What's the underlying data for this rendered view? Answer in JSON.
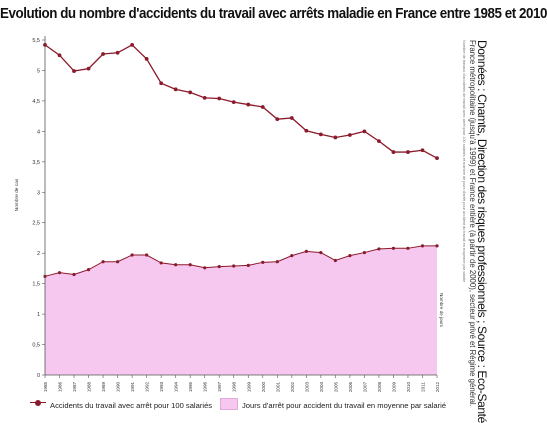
{
  "chart_data": {
    "type": "line",
    "title": "Evolution du nombre d'accidents du travail avec arrêts maladie en France entre 1985 et 2010",
    "source_text": "Données : Cnamts, Direction des risques professionnels ; Source : Eco-Santé",
    "note_text": "France métropolitaine (jusqu'à 1999) et France entière (à partir de 2000), secteur privé et Régime général.",
    "note_text_small": "Nombre de travaux d'accidents de travail avec arrêt pour 100 salariés et nombre de jours d'arrêt pour accident du travail en moyenne par salarié",
    "ylabel": "Nombre de cas",
    "y2label": "Nombre de jours",
    "ylim": [
      0,
      5.5
    ],
    "yticks": [
      "0",
      "0,5",
      "1",
      "1,5",
      "2",
      "2,5",
      "3",
      "3,5",
      "4",
      "4,5",
      "5",
      "5,5"
    ],
    "x": [
      "1985",
      "1986",
      "1987",
      "1988",
      "1989",
      "1990",
      "1991",
      "1992",
      "1993",
      "1994",
      "1995",
      "1996",
      "1997",
      "1998",
      "1999",
      "2000",
      "2001",
      "2002",
      "2003",
      "2004",
      "2005",
      "2006",
      "2007",
      "2008",
      "2009",
      "2010",
      "2011",
      "2012"
    ],
    "series": [
      {
        "name": "Accidents du travail avec arrêt pour 100 salariés",
        "type": "line",
        "color": "#8b1a2b",
        "values": [
          5.42,
          5.25,
          4.99,
          5.03,
          5.27,
          5.29,
          5.42,
          5.19,
          4.79,
          4.69,
          4.64,
          4.55,
          4.54,
          4.48,
          4.44,
          4.4,
          4.2,
          4.22,
          4.01,
          3.95,
          3.9,
          3.94,
          4.0,
          3.84,
          3.66,
          3.66,
          3.69,
          3.56
        ]
      },
      {
        "name": "Jours d'arrêt pour accident du travail en moyenne par salarié",
        "type": "area",
        "color": "#f6c8f0",
        "line_color": "#8b1a2b",
        "values": [
          1.62,
          1.68,
          1.65,
          1.73,
          1.86,
          1.86,
          1.97,
          1.97,
          1.84,
          1.81,
          1.81,
          1.76,
          1.78,
          1.79,
          1.8,
          1.85,
          1.86,
          1.96,
          2.03,
          2.01,
          1.88,
          1.96,
          2.01,
          2.07,
          2.08,
          2.08,
          2.12,
          2.12
        ]
      }
    ],
    "grid": false,
    "legend": "bottom"
  }
}
